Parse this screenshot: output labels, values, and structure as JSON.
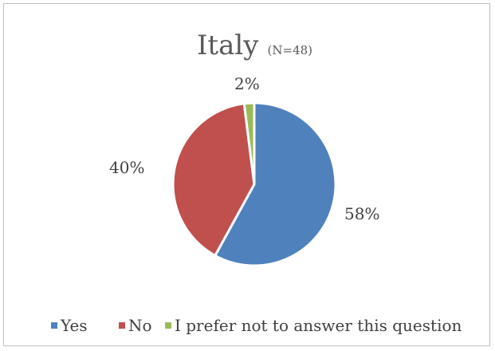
{
  "chart_data": {
    "type": "pie",
    "title": "Italy",
    "subtitle": "(N=48)",
    "categories": [
      "Yes",
      "No",
      "I prefer not to answer this question"
    ],
    "values": [
      58,
      40,
      2
    ],
    "data_labels": [
      "58%",
      "40%",
      "2%"
    ],
    "colors": [
      "#4F81BD",
      "#C0504D",
      "#9BBB59"
    ],
    "legend_position": "bottom"
  }
}
